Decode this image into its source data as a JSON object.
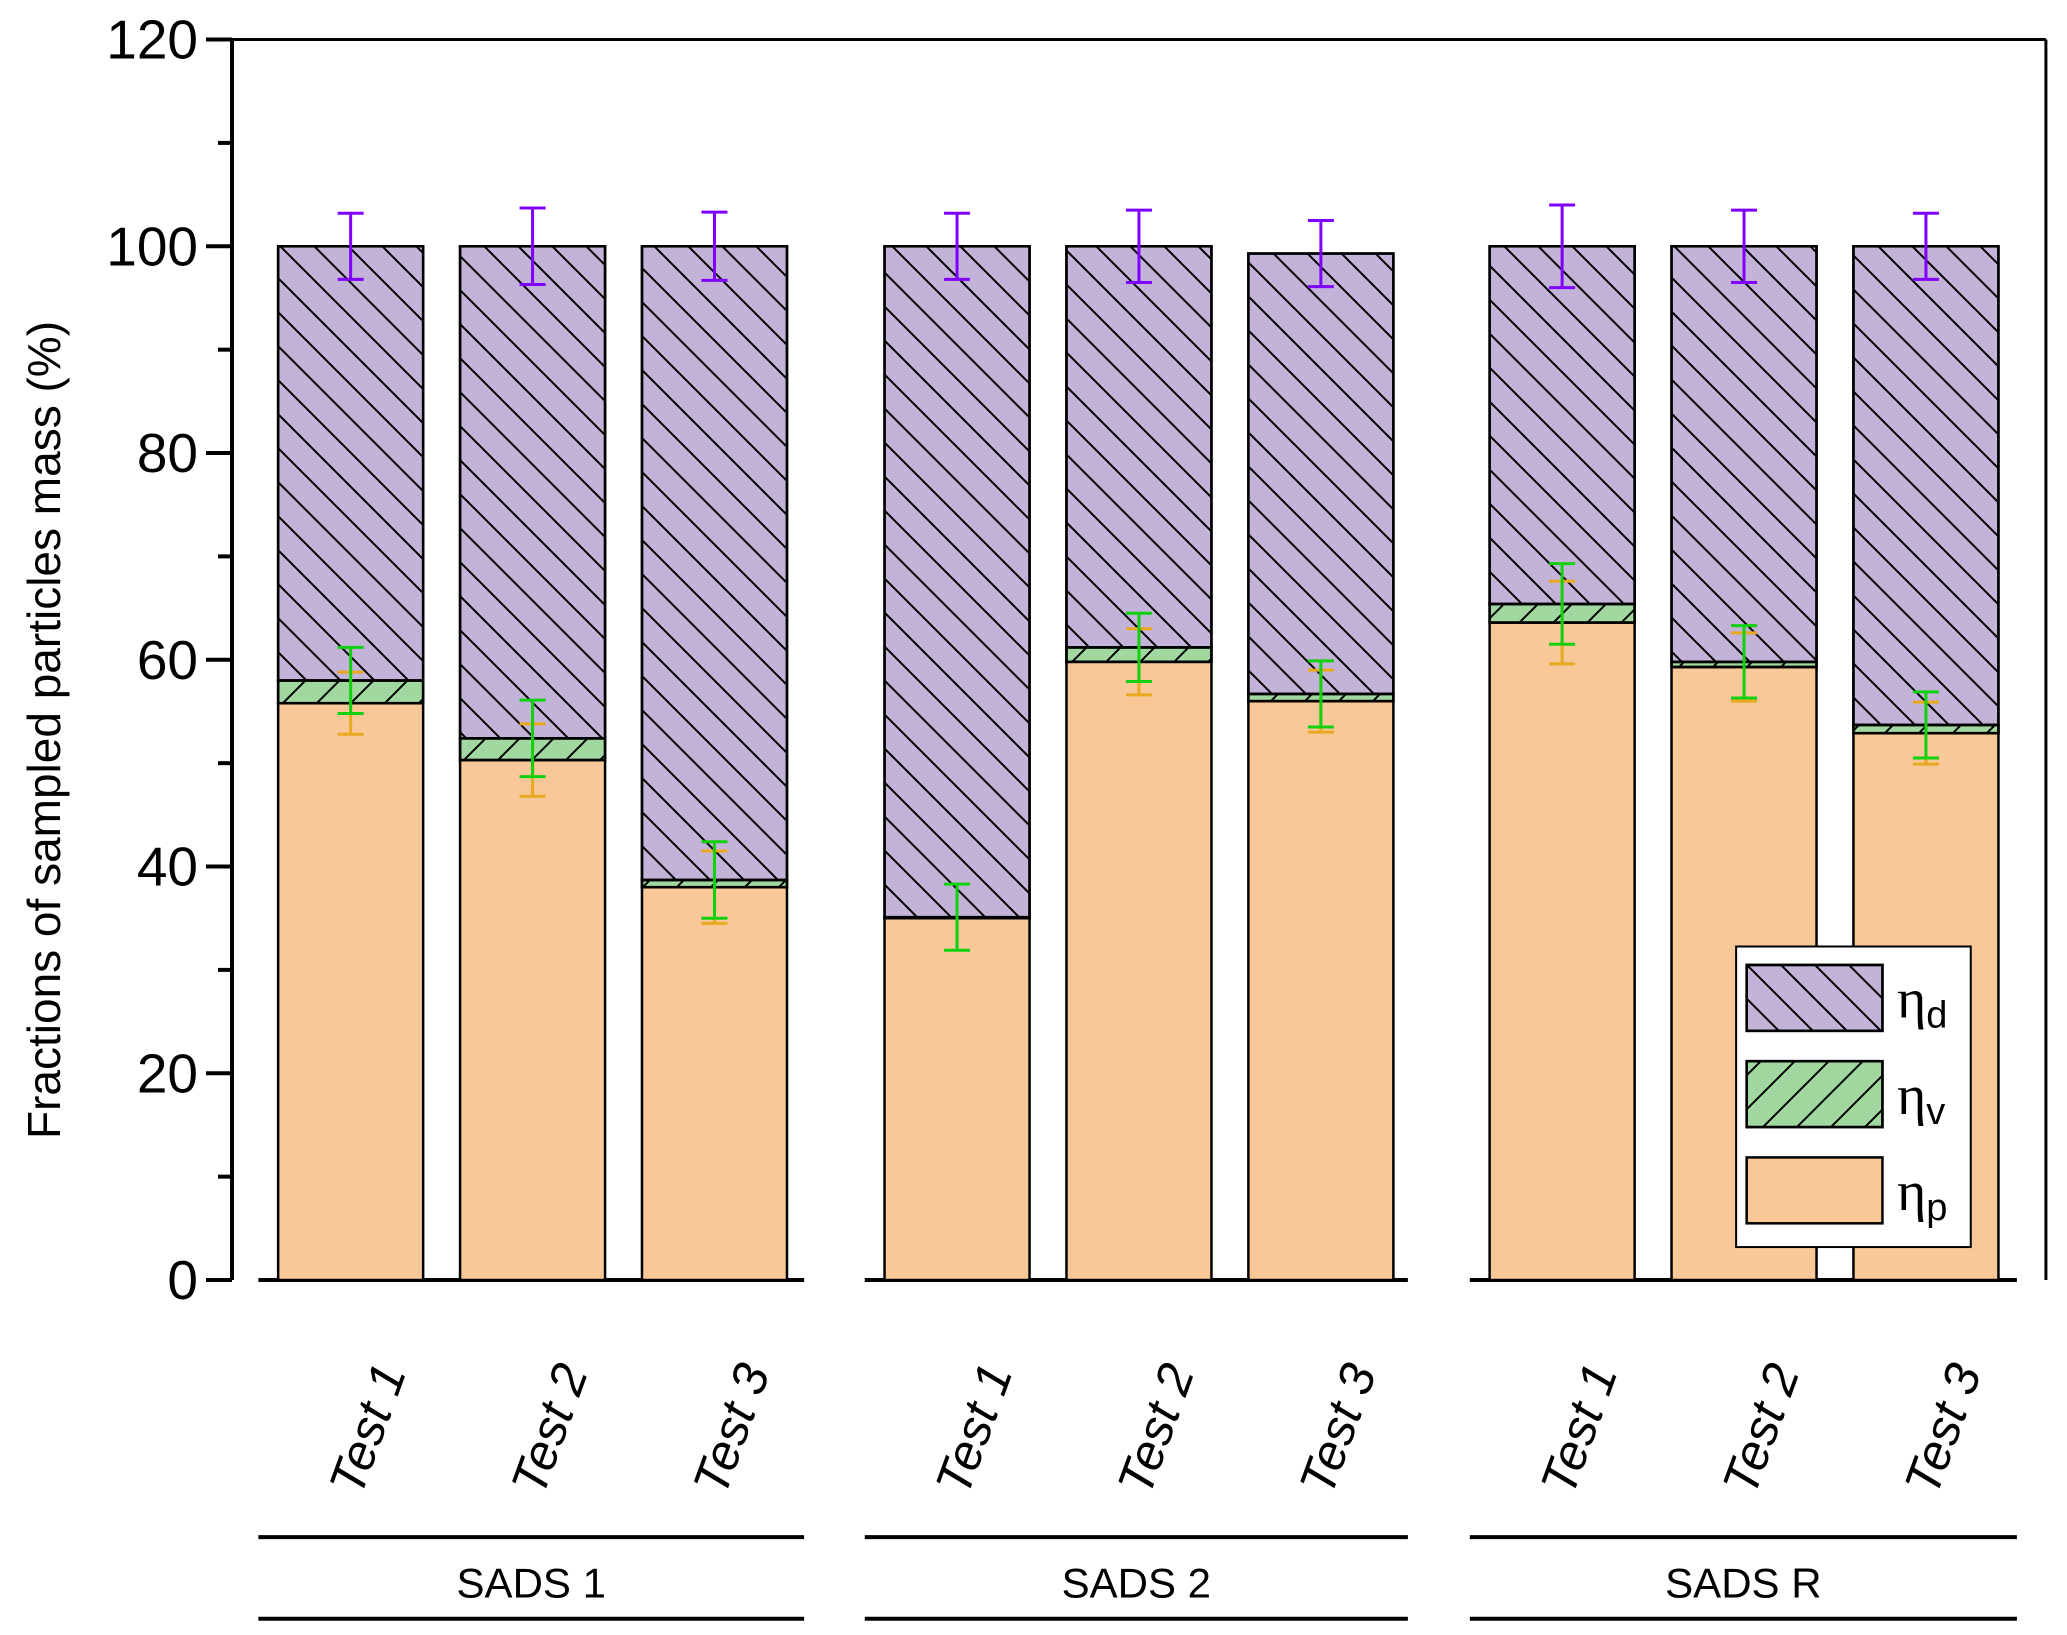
{
  "chart_data": {
    "type": "bar",
    "stacked": true,
    "title": "",
    "xlabel": "",
    "ylabel": "Fractions of sampled particles mass (%)",
    "ylim": [
      0,
      120
    ],
    "yticks": [
      "0",
      "20",
      "40",
      "60",
      "80",
      "100",
      "120"
    ],
    "grid": false,
    "legend_position": "bottom-right",
    "groups": [
      {
        "label": "SADS 1",
        "categories": [
          "Test 1",
          "Test 2",
          "Test 3"
        ]
      },
      {
        "label": "SADS 2",
        "categories": [
          "Test 1",
          "Test 2",
          "Test 3"
        ]
      },
      {
        "label": "SADS R",
        "categories": [
          "Test 1",
          "Test 2",
          "Test 3"
        ]
      }
    ],
    "series": [
      {
        "name": "ηp",
        "symbol": "η",
        "subscript": "p",
        "color": "#F9C898",
        "hatch": "none",
        "error_color": "#E8A820",
        "values": [
          55.8,
          50.3,
          38.0,
          35.0,
          59.8,
          56.0,
          63.6,
          59.3,
          52.9
        ],
        "errors": [
          3.0,
          3.5,
          3.5,
          0,
          3.2,
          3.0,
          4.0,
          3.3,
          3.0
        ]
      },
      {
        "name": "ηv",
        "symbol": "η",
        "subscript": "v",
        "color": "#A0D8A0",
        "hatch": "forward",
        "error_color": "#10D010",
        "values": [
          2.2,
          2.1,
          0.7,
          0.1,
          1.4,
          0.7,
          1.8,
          0.5,
          0.8
        ],
        "errors": [
          3.2,
          3.7,
          3.7,
          3.2,
          3.3,
          3.2,
          3.9,
          3.5,
          3.2
        ]
      },
      {
        "name": "ηd",
        "symbol": "η",
        "subscript": "d",
        "color": "#C3B3D8",
        "hatch": "backward",
        "error_color": "#8000FF",
        "values": [
          42.0,
          47.6,
          61.3,
          64.9,
          38.8,
          42.6,
          34.6,
          40.2,
          46.3
        ],
        "errors": [
          3.2,
          3.7,
          3.3,
          3.2,
          3.5,
          3.2,
          4.0,
          3.5,
          3.2
        ]
      }
    ]
  }
}
